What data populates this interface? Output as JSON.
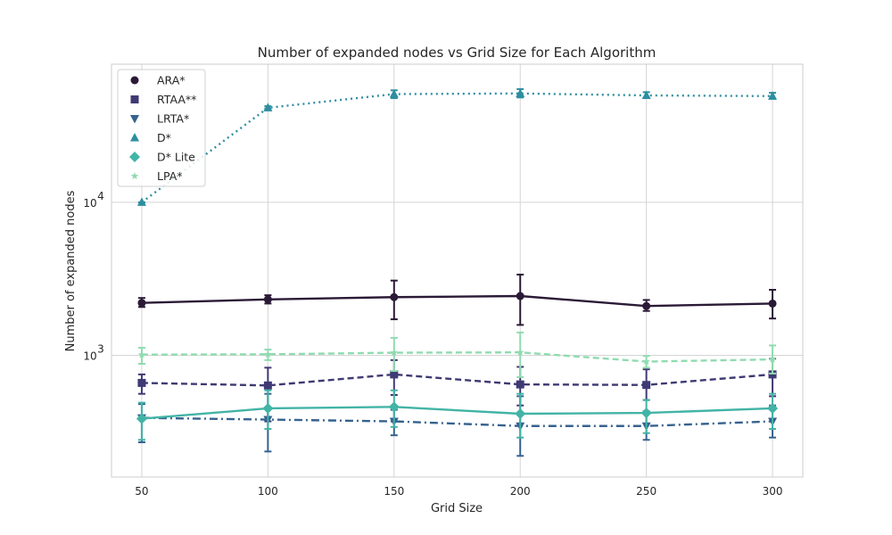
{
  "chart_data": {
    "type": "line",
    "title": "Number of expanded nodes vs Grid Size for Each Algorithm",
    "xlabel": "Grid Size",
    "ylabel": "Number of expanded nodes",
    "y_scale": "log",
    "ylim": [
      160,
      80000
    ],
    "xlim": [
      38,
      312
    ],
    "x": [
      50,
      100,
      150,
      200,
      250,
      300
    ],
    "x_ticks": [
      "50",
      "100",
      "150",
      "200",
      "250",
      "300"
    ],
    "y_ticks": [
      {
        "value": 1000,
        "label": "10",
        "exp": "3"
      },
      {
        "value": 10000,
        "label": "10",
        "exp": "4"
      }
    ],
    "grid": true,
    "legend_position": "top-left",
    "series": [
      {
        "name": "ARA*",
        "color": "#2b1a36",
        "marker": "circle",
        "dash": "solid",
        "values": [
          2200,
          2320,
          2400,
          2440,
          2100,
          2180
        ],
        "err_low": [
          2070,
          2180,
          1720,
          1580,
          1950,
          1740
        ],
        "err_high": [
          2370,
          2470,
          3080,
          3370,
          2300,
          2680
        ]
      },
      {
        "name": "RTAA**",
        "color": "#3f3a74",
        "marker": "square",
        "dash": "dashed",
        "values": [
          660,
          635,
          750,
          645,
          640,
          750
        ],
        "err_low": [
          560,
          370,
          550,
          470,
          510,
          540
        ],
        "err_high": [
          750,
          830,
          930,
          840,
          810,
          950
        ]
      },
      {
        "name": "LRTA*",
        "color": "#36628f",
        "marker": "triangle-down",
        "dash": "dashdot",
        "values": [
          390,
          380,
          370,
          345,
          345,
          370
        ],
        "err_low": [
          270,
          235,
          300,
          220,
          280,
          290
        ],
        "err_high": [
          480,
          560,
          440,
          540,
          430,
          470
        ]
      },
      {
        "name": "D*",
        "color": "#2d8ea0",
        "marker": "triangle-up",
        "dash": "dotted",
        "values": [
          10000,
          41500,
          51000,
          51500,
          50000,
          49500
        ],
        "err_low": [
          10000,
          41000,
          48000,
          48500,
          48000,
          47500
        ],
        "err_high": [
          10000,
          42500,
          54000,
          55000,
          52500,
          52000
        ]
      },
      {
        "name": "D* Lite",
        "color": "#42b4a6",
        "marker": "diamond",
        "dash": "solid",
        "values": [
          385,
          450,
          460,
          415,
          420,
          450
        ],
        "err_low": [
          280,
          330,
          340,
          290,
          310,
          330
        ],
        "err_high": [
          490,
          590,
          590,
          560,
          510,
          560
        ]
      },
      {
        "name": "LPA*",
        "color": "#90dbb0",
        "marker": "star",
        "dash": "dashed",
        "values": [
          1010,
          1015,
          1040,
          1045,
          910,
          940
        ],
        "err_low": [
          880,
          930,
          790,
          720,
          830,
          760
        ],
        "err_high": [
          1120,
          1090,
          1300,
          1410,
          990,
          1160
        ]
      }
    ]
  }
}
